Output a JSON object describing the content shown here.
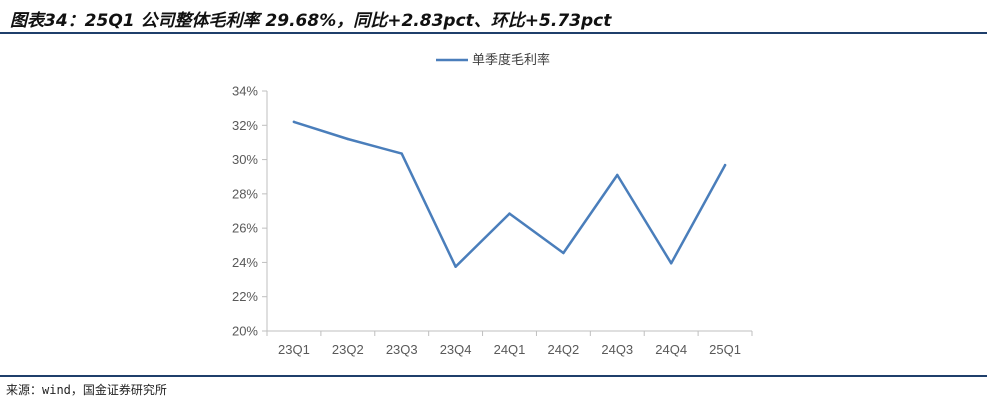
{
  "figure": {
    "title": "图表34：25Q1 公司整体毛利率 29.68%，同比+2.83pct、环比+5.73pct",
    "source": "来源：wind，国金证券研究所"
  },
  "colors": {
    "line": "#4a7ebb",
    "axis": "#bfbfbf",
    "rule": "#1f3f6b"
  },
  "chart_data": {
    "type": "line",
    "categories": [
      "23Q1",
      "23Q2",
      "23Q3",
      "23Q4",
      "24Q1",
      "24Q2",
      "24Q3",
      "24Q4",
      "25Q1"
    ],
    "series": [
      {
        "name": "单季度毛利率",
        "values": [
          32.2,
          31.2,
          30.35,
          23.75,
          26.85,
          24.55,
          29.1,
          23.95,
          29.68
        ]
      }
    ],
    "ylim": [
      20,
      34
    ],
    "yticks": [
      20,
      22,
      24,
      26,
      28,
      30,
      32,
      34
    ],
    "ytick_suffix": "%",
    "grid": false,
    "legend": "top-center",
    "xlabel": "",
    "ylabel": ""
  }
}
